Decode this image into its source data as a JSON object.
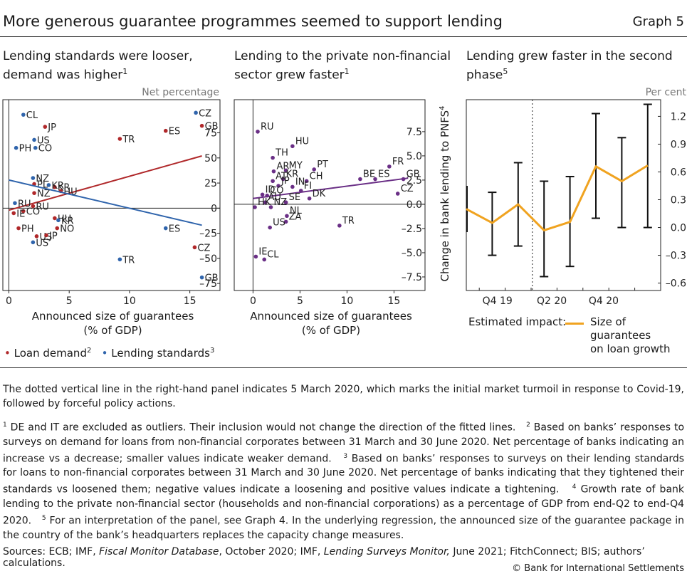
{
  "header": {
    "title": "More generous guarantee programmes seemed to support lending",
    "graph_no": "Graph 5"
  },
  "panels": {
    "left": {
      "title_line1": "Lending standards were looser,",
      "title_line2": "demand was higher",
      "title_sup": "1"
    },
    "mid": {
      "title_line1": "Lending to the private non-financial",
      "title_line2": "sector grew faster",
      "title_sup": "1"
    },
    "right": {
      "title_line1": "Lending grew faster in the second",
      "title_line2": "phase",
      "title_sup": "5"
    }
  },
  "legend": {
    "loan_demand": "Loan demand",
    "loan_demand_sup": "2",
    "lending_standards": "Lending standards",
    "lending_standards_sup": "3",
    "estimated_impact": "Estimated impact:",
    "size_line1": "Size of guarantees",
    "size_line2": "on loan growth"
  },
  "notes": {
    "dotted_line": "The dotted vertical line in the right-hand panel indicates 5 March 2020, which marks the initial market turmoil in response to Covid-19, followed by forceful policy actions.",
    "fn1": "DE and IT are excluded as outliers. Their inclusion would not change the direction of the fitted lines.",
    "fn2": "Based on banks’ responses to surveys on demand for loans from non-financial corporates between 31 March and 30 June 2020. Net percentage of banks indicating an increase vs a decrease; smaller values indicate weaker demand.",
    "fn3": "Based on banks’ responses to surveys on their lending standards for loans to non-financial corporates between 31 March and 30 June 2020. Net percentage of banks indicating that they tightened their standards vs loosened them; negative values indicate a loosening and positive values indicate a tightening.",
    "fn4": "Growth rate of bank lending to the private non-financial sector (households and non-financial corporations) as a percentage of GDP from end-Q2 to end-Q4 2020.",
    "fn5": "For an interpretation of the panel, see Graph 4. In the underlying regression, the announced size of the guarantee package in the country of the bank’s headquarters replaces the capacity change measures."
  },
  "sources": {
    "prefix": "Sources: ECB; IMF, ",
    "fmd": "Fiscal Monitor Database",
    "mid": ", October 2020; IMF, ",
    "lsm": "Lending Surveys Monitor,",
    "suffix": " June 2021; FitchConnect; BIS; authors’ calculations."
  },
  "copyright": "© Bank for International Settlements",
  "colors": {
    "red": "#b0282a",
    "blue": "#2f64ac",
    "purple": "#6a2f86",
    "orange": "#f0a320",
    "axis": "#222222",
    "grid": "#cfcfcf"
  },
  "chart_data": [
    {
      "type": "scatter",
      "title": "Lending standards were looser, demand was higher",
      "xlabel_line1": "Announced size of guarantees",
      "xlabel_line2": "(% of GDP)",
      "unit_label": "Net percentage",
      "xlim": [
        -0.5,
        17.5
      ],
      "ylim": [
        -82,
        108
      ],
      "xticks": [
        0,
        5,
        10,
        15
      ],
      "yticks": [
        -75,
        -50,
        -25,
        0,
        25,
        50,
        75
      ],
      "series": [
        {
          "name": "Loan demand",
          "color": "red",
          "points": [
            {
              "label": "JP",
              "x": 3.0,
              "y": 81
            },
            {
              "label": "ES",
              "x": 13.0,
              "y": 77
            },
            {
              "label": "GB",
              "x": 16.0,
              "y": 82
            },
            {
              "label": "TR",
              "x": 9.2,
              "y": 69
            },
            {
              "label": "KR",
              "x": 3.8,
              "y": 21
            },
            {
              "label": "HU",
              "x": 4.3,
              "y": 17
            },
            {
              "label": "PL",
              "x": 2.1,
              "y": 24
            },
            {
              "label": "NZ",
              "x": 2.1,
              "y": 15
            },
            {
              "label": "RU",
              "x": 2.0,
              "y": 2
            },
            {
              "label": "CO",
              "x": 1.2,
              "y": -3
            },
            {
              "label": "IE",
              "x": 0.4,
              "y": -5
            },
            {
              "label": "HU",
              "x": 3.8,
              "y": -10
            },
            {
              "label": "NO",
              "x": 4.0,
              "y": -20
            },
            {
              "label": "PH",
              "x": 0.8,
              "y": -20
            },
            {
              "label": "US",
              "x": 2.3,
              "y": -28
            },
            {
              "label": "JP",
              "x": 3.1,
              "y": -27
            },
            {
              "label": "CZ",
              "x": 15.4,
              "y": -39
            }
          ],
          "fit": {
            "x0": 0,
            "y0": -2,
            "x1": 16,
            "y1": 52
          }
        },
        {
          "name": "Lending standards",
          "color": "blue",
          "points": [
            {
              "label": "CL",
              "x": 1.2,
              "y": 93
            },
            {
              "label": "CZ",
              "x": 15.5,
              "y": 95
            },
            {
              "label": "US",
              "x": 2.1,
              "y": 68
            },
            {
              "label": "CO",
              "x": 2.2,
              "y": 60
            },
            {
              "label": "PH",
              "x": 0.6,
              "y": 60
            },
            {
              "label": "NZ",
              "x": 2.0,
              "y": 30
            },
            {
              "label": "KR",
              "x": 3.3,
              "y": 23
            },
            {
              "label": "RU",
              "x": 0.5,
              "y": 5
            },
            {
              "label": "KR",
              "x": 4.1,
              "y": -12
            },
            {
              "label": "US",
              "x": 2.0,
              "y": -34
            },
            {
              "label": "ES",
              "x": 13.0,
              "y": -20
            },
            {
              "label": "TR",
              "x": 9.2,
              "y": -51
            },
            {
              "label": "GB",
              "x": 16.0,
              "y": -69
            }
          ],
          "fit": {
            "x0": 0,
            "y0": 28,
            "x1": 16,
            "y1": -17
          }
        }
      ]
    },
    {
      "type": "scatter",
      "title": "Lending to the private non-financial sector grew faster",
      "xlabel_line1": "Announced size of guarantees",
      "xlabel_line2": "(% of GDP)",
      "ylabel": "Change in bank lending to PNFS",
      "ylabel_sup": "4",
      "xlim": [
        -2,
        18.3
      ],
      "ylim": [
        -8.9,
        10.8
      ],
      "xticks": [
        0,
        5,
        10,
        15
      ],
      "yticks": [
        -7.5,
        -5.0,
        -2.5,
        0.0,
        2.5,
        5.0,
        7.5
      ],
      "series": [
        {
          "name": "Countries",
          "color": "purple",
          "points": [
            {
              "label": "RU",
              "x": 0.5,
              "y": 7.5
            },
            {
              "label": "HU",
              "x": 4.2,
              "y": 6.0
            },
            {
              "label": "TH",
              "x": 2.1,
              "y": 4.8
            },
            {
              "label": "MY",
              "x": 3.5,
              "y": 3.5
            },
            {
              "label": "AR",
              "x": 2.2,
              "y": 3.4
            },
            {
              "label": "PT",
              "x": 6.5,
              "y": 3.6
            },
            {
              "label": "FR",
              "x": 14.5,
              "y": 3.9
            },
            {
              "label": "KR",
              "x": 3.2,
              "y": 2.6
            },
            {
              "label": "AT",
              "x": 2.1,
              "y": 2.4
            },
            {
              "label": "CH",
              "x": 5.7,
              "y": 2.4
            },
            {
              "label": "BE",
              "x": 11.4,
              "y": 2.6
            },
            {
              "label": "ES",
              "x": 13.0,
              "y": 2.6
            },
            {
              "label": "GB",
              "x": 16.0,
              "y": 2.6
            },
            {
              "label": "JP",
              "x": 2.7,
              "y": 1.9
            },
            {
              "label": "IN",
              "x": 4.2,
              "y": 1.8
            },
            {
              "label": "FI",
              "x": 5.1,
              "y": 1.4
            },
            {
              "label": "CZ",
              "x": 15.4,
              "y": 1.1
            },
            {
              "label": "ID",
              "x": 1.0,
              "y": 1.0
            },
            {
              "label": "CO",
              "x": 1.5,
              "y": 0.9
            },
            {
              "label": "DK",
              "x": 6.0,
              "y": 0.6
            },
            {
              "label": "AU",
              "x": 1.3,
              "y": 0.2
            },
            {
              "label": "SE",
              "x": 3.5,
              "y": 0.2
            },
            {
              "label": "NZ",
              "x": 1.9,
              "y": -0.3
            },
            {
              "label": "HK",
              "x": 0.2,
              "y": -0.3
            },
            {
              "label": "NL",
              "x": 3.6,
              "y": -1.2
            },
            {
              "label": "ZA",
              "x": 3.5,
              "y": -1.8
            },
            {
              "label": "US",
              "x": 1.8,
              "y": -2.4
            },
            {
              "label": "TR",
              "x": 9.2,
              "y": -2.2
            },
            {
              "label": "IE",
              "x": 0.3,
              "y": -5.4
            },
            {
              "label": "CL",
              "x": 1.2,
              "y": -5.7
            }
          ],
          "fit": {
            "x0": 0,
            "y0": 0.6,
            "x1": 16.5,
            "y1": 2.7
          }
        }
      ]
    },
    {
      "type": "line",
      "title": "Lending grew faster in the second phase",
      "unit_label": "Per cent",
      "ylim": [
        -0.68,
        1.38
      ],
      "yticks": [
        -0.6,
        -0.3,
        0.0,
        0.3,
        0.6,
        0.9,
        1.2
      ],
      "yticklabels": [
        "–0.6",
        "–0.3",
        "0.0",
        "0.3",
        "0.6",
        "0.9",
        "1.2"
      ],
      "xticklabels": [
        "Q4 19",
        "Q2 20",
        "Q4 20"
      ],
      "dotted_line_label": "5 March 2020",
      "series": [
        {
          "name": "Size of guarantees on loan growth",
          "color": "orange",
          "points": [
            {
              "t": 0,
              "y": 0.2
            },
            {
              "t": 1,
              "y": 0.05
            },
            {
              "t": 2,
              "y": 0.25
            },
            {
              "t": 3,
              "y": -0.03
            },
            {
              "t": 4,
              "y": 0.06
            },
            {
              "t": 5,
              "y": 0.66
            },
            {
              "t": 6,
              "y": 0.5
            },
            {
              "t": 7,
              "y": 0.67
            }
          ],
          "ci": [
            {
              "lo": null,
              "hi": null
            },
            {
              "lo": -0.3,
              "hi": 0.38
            },
            {
              "lo": -0.2,
              "hi": 0.7
            },
            {
              "lo": -0.53,
              "hi": 0.5
            },
            {
              "lo": -0.42,
              "hi": 0.55
            },
            {
              "lo": 0.1,
              "hi": 1.23
            },
            {
              "lo": 0.0,
              "hi": 0.97
            },
            {
              "lo": 0.0,
              "hi": 1.33
            }
          ]
        }
      ]
    }
  ]
}
